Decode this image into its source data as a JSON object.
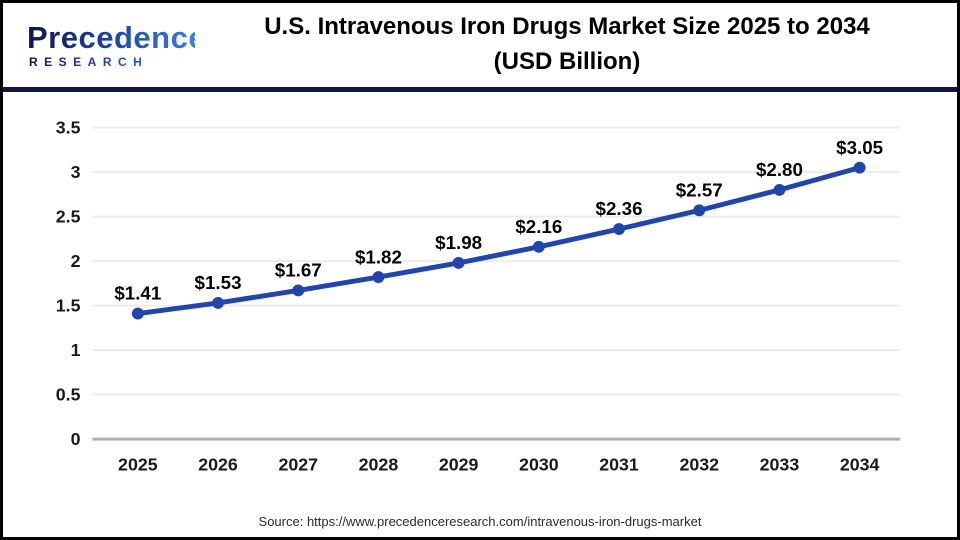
{
  "header": {
    "logo": {
      "line1": "Precedence",
      "line2": "RESEARCH"
    },
    "title_line1": "U.S. Intravenous Iron Drugs Market Size 2025 to 2034",
    "title_line2": "(USD Billion)"
  },
  "chart_data": {
    "type": "line",
    "title": "U.S. Intravenous Iron Drugs Market Size 2025 to 2034 (USD Billion)",
    "categories": [
      "2025",
      "2026",
      "2027",
      "2028",
      "2029",
      "2030",
      "2031",
      "2032",
      "2033",
      "2034"
    ],
    "values": [
      1.41,
      1.53,
      1.67,
      1.82,
      1.98,
      2.16,
      2.36,
      2.57,
      2.8,
      3.05
    ],
    "point_labels": [
      "$1.41",
      "$1.53",
      "$1.67",
      "$1.82",
      "$1.98",
      "$2.16",
      "$2.36",
      "$2.57",
      "$2.80",
      "$3.05"
    ],
    "xlabel": "",
    "ylabel": "",
    "ylim": [
      0,
      3.5
    ],
    "yticks": [
      0,
      0.5,
      1,
      1.5,
      2,
      2.5,
      3,
      3.5
    ],
    "ytick_labels": [
      "0",
      "0.5",
      "1",
      "1.5",
      "2",
      "2.5",
      "3",
      "3.5"
    ],
    "grid": true,
    "legend": "none",
    "line_color": "#2146ab",
    "grid_color": "#ececec",
    "axis_color": "#b0b0b0",
    "label_color": "#050505"
  },
  "footer": {
    "source": "Source: https://www.precedenceresearch.com/intravenous-iron-drugs-market"
  }
}
